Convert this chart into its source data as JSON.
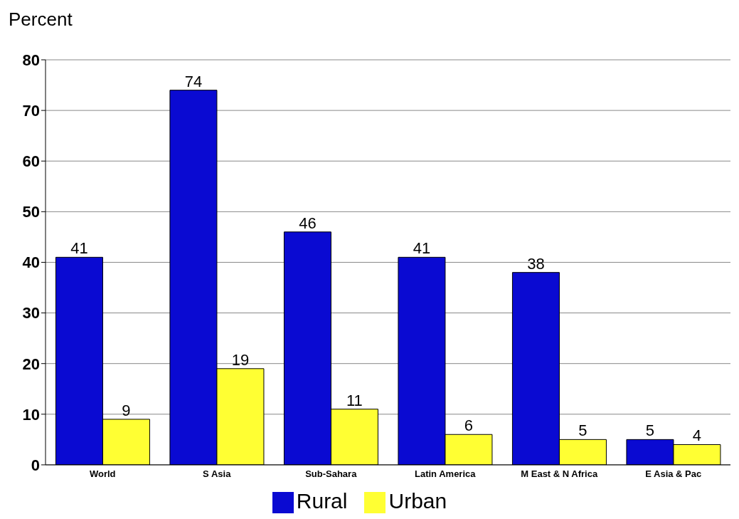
{
  "chart_data": {
    "type": "bar",
    "ylabel": "Percent",
    "categories": [
      "World",
      "S Asia",
      "Sub-Sahara",
      "Latin America",
      "M East & N Africa",
      "E Asia & Pac"
    ],
    "series": [
      {
        "name": "Rural",
        "color": "#0a0ad2",
        "values": [
          41,
          74,
          46,
          41,
          38,
          5
        ]
      },
      {
        "name": "Urban",
        "color": "#ffff33",
        "values": [
          9,
          19,
          11,
          6,
          5,
          4
        ]
      }
    ],
    "ylim": [
      0,
      80
    ],
    "yticks": [
      0,
      10,
      20,
      30,
      40,
      50,
      60,
      70,
      80
    ],
    "grid": "y",
    "legend": "bottom",
    "data_labels": true
  }
}
